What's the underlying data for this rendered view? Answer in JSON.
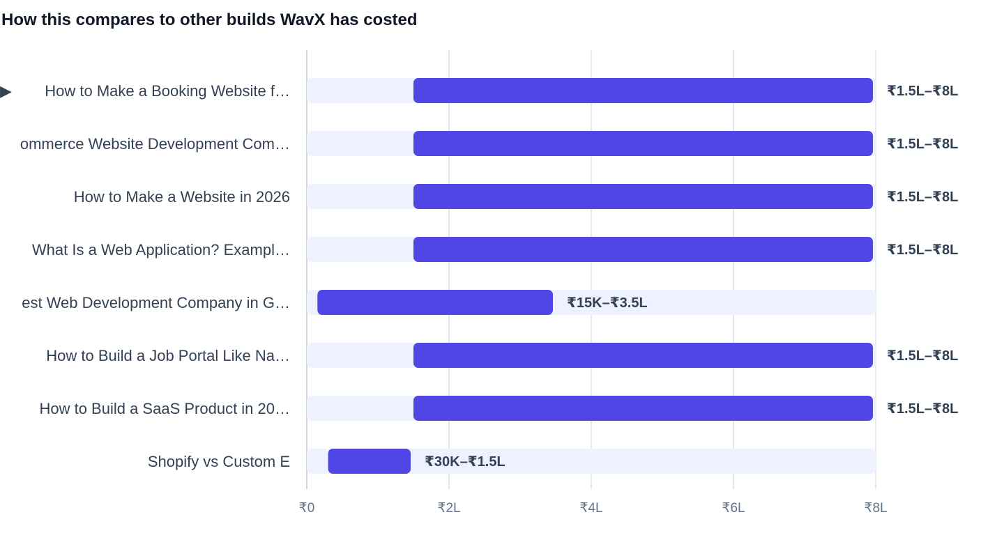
{
  "chart_data": {
    "type": "bar",
    "orientation": "horizontal",
    "title": "How this compares to other builds WavX has costed",
    "xlabel": "",
    "ylabel": "",
    "unit": "₹ Lakh",
    "xlim": [
      0,
      8
    ],
    "ticks": [
      {
        "value": 0,
        "label": "₹0"
      },
      {
        "value": 2,
        "label": "₹2L"
      },
      {
        "value": 4,
        "label": "₹4L"
      },
      {
        "value": 6,
        "label": "₹6L"
      },
      {
        "value": 8,
        "label": "₹8L"
      }
    ],
    "grid": true,
    "legend": "none",
    "categories": [
      "How to Make a Booking Website f…",
      "ommerce Website Development Com…",
      "How to Make a Website in 2026",
      "What Is a Web Application? Exampl…",
      "est Web Development Company in G…",
      "How to Build a Job Portal Like Na…",
      "How to Build a SaaS Product in 20…",
      "Shopify vs Custom E"
    ],
    "current_marker": "▶",
    "current_index": 0,
    "ranges": [
      {
        "min": 1.5,
        "max": 8,
        "label": "₹1.5L–₹8L"
      },
      {
        "min": 1.5,
        "max": 8,
        "label": "₹1.5L–₹8L"
      },
      {
        "min": 1.5,
        "max": 8,
        "label": "₹1.5L–₹8L"
      },
      {
        "min": 1.5,
        "max": 8,
        "label": "₹1.5L–₹8L"
      },
      {
        "min": 0.15,
        "max": 3.5,
        "label": "₹15K–₹3.5L"
      },
      {
        "min": 1.5,
        "max": 8,
        "label": "₹1.5L–₹8L"
      },
      {
        "min": 1.5,
        "max": 8,
        "label": "₹1.5L–₹8L"
      },
      {
        "min": 0.3,
        "max": 1.5,
        "label": "₹30K–₹1.5L"
      }
    ],
    "colors": {
      "bar": "#5046e5",
      "track": "#eef2ff",
      "grid": "#e5e7eb",
      "text": "#334155",
      "tick": "#64748b",
      "marker": "#334155"
    }
  }
}
